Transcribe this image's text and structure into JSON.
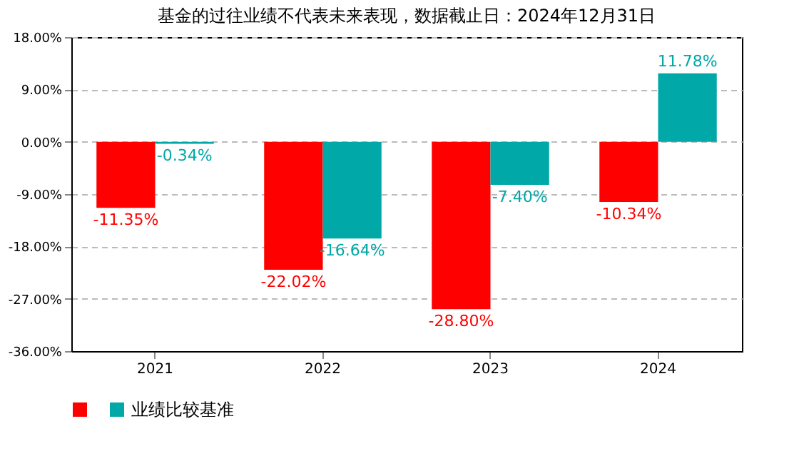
{
  "chart_data": {
    "type": "bar",
    "title": "基金的过往业绩不代表未来表现，数据截止日：2024年12月31日",
    "categories": [
      "2021",
      "2022",
      "2023",
      "2024"
    ],
    "series": [
      {
        "color": "#ff0000",
        "values": [
          -11.35,
          -22.02,
          -28.8,
          -10.34
        ],
        "value_labels": [
          "-11.35%",
          "-22.02%",
          "-28.80%",
          "-10.34%"
        ]
      },
      {
        "name": "业绩比较基准",
        "color": "#00a8a8",
        "values": [
          -0.34,
          -16.64,
          -7.4,
          11.78
        ],
        "value_labels": [
          "-0.34%",
          "-16.64%",
          "-7.40%",
          "11.78%"
        ]
      }
    ],
    "ylim": [
      -36,
      18
    ],
    "yticks": [
      {
        "value": 18,
        "label": "18.00%"
      },
      {
        "value": 9,
        "label": "9.00%"
      },
      {
        "value": 0,
        "label": "0.00%"
      },
      {
        "value": -9,
        "label": "-9.00%"
      },
      {
        "value": -18,
        "label": "-18.00%"
      },
      {
        "value": -27,
        "label": "-27.00%"
      },
      {
        "value": -36,
        "label": "-36.00%"
      }
    ],
    "grid": "y",
    "legend": "bottom"
  }
}
